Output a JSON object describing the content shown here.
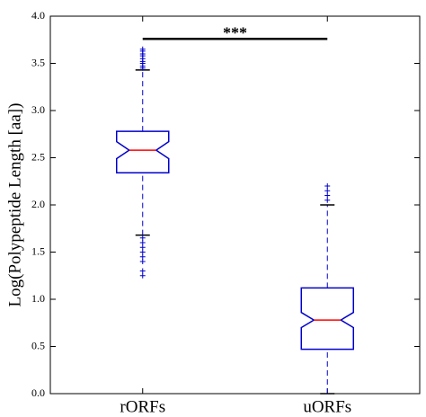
{
  "chart_data": {
    "type": "box",
    "ylabel": "Log(Polypeptide Length [aa])",
    "categories": [
      "rORFs",
      "uORFs"
    ],
    "boxes": [
      {
        "whislo": 1.68,
        "q1": 2.34,
        "notch_lo": 2.49,
        "med": 2.58,
        "notch_hi": 2.67,
        "q3": 2.78,
        "whishi": 3.43,
        "fliers": [
          3.45,
          3.47,
          3.5,
          3.52,
          3.55,
          3.58,
          3.6,
          3.63,
          3.65,
          1.65,
          1.6,
          1.55,
          1.5,
          1.45,
          1.4,
          1.3,
          1.25
        ]
      },
      {
        "whislo": 0.0,
        "q1": 0.47,
        "notch_lo": 0.7,
        "med": 0.78,
        "notch_hi": 0.86,
        "q3": 1.12,
        "whishi": 2.0,
        "fliers": [
          2.05,
          2.1,
          2.15,
          2.2
        ]
      }
    ],
    "box_color": "#0000cc",
    "median_color": "#ff0000",
    "cap_color": "#000000",
    "annotation": {
      "text": "***",
      "y": 3.76
    },
    "ylim": [
      0,
      4
    ],
    "yticks": [
      {
        "value": 0,
        "label": "0.0"
      },
      0.5,
      {
        "value": 1,
        "label": "1.0"
      },
      1.5,
      {
        "value": 2,
        "label": "2.0"
      },
      2.5,
      {
        "value": 3,
        "label": "3.0"
      },
      3.5,
      {
        "value": 4,
        "label": "4.0"
      }
    ]
  }
}
